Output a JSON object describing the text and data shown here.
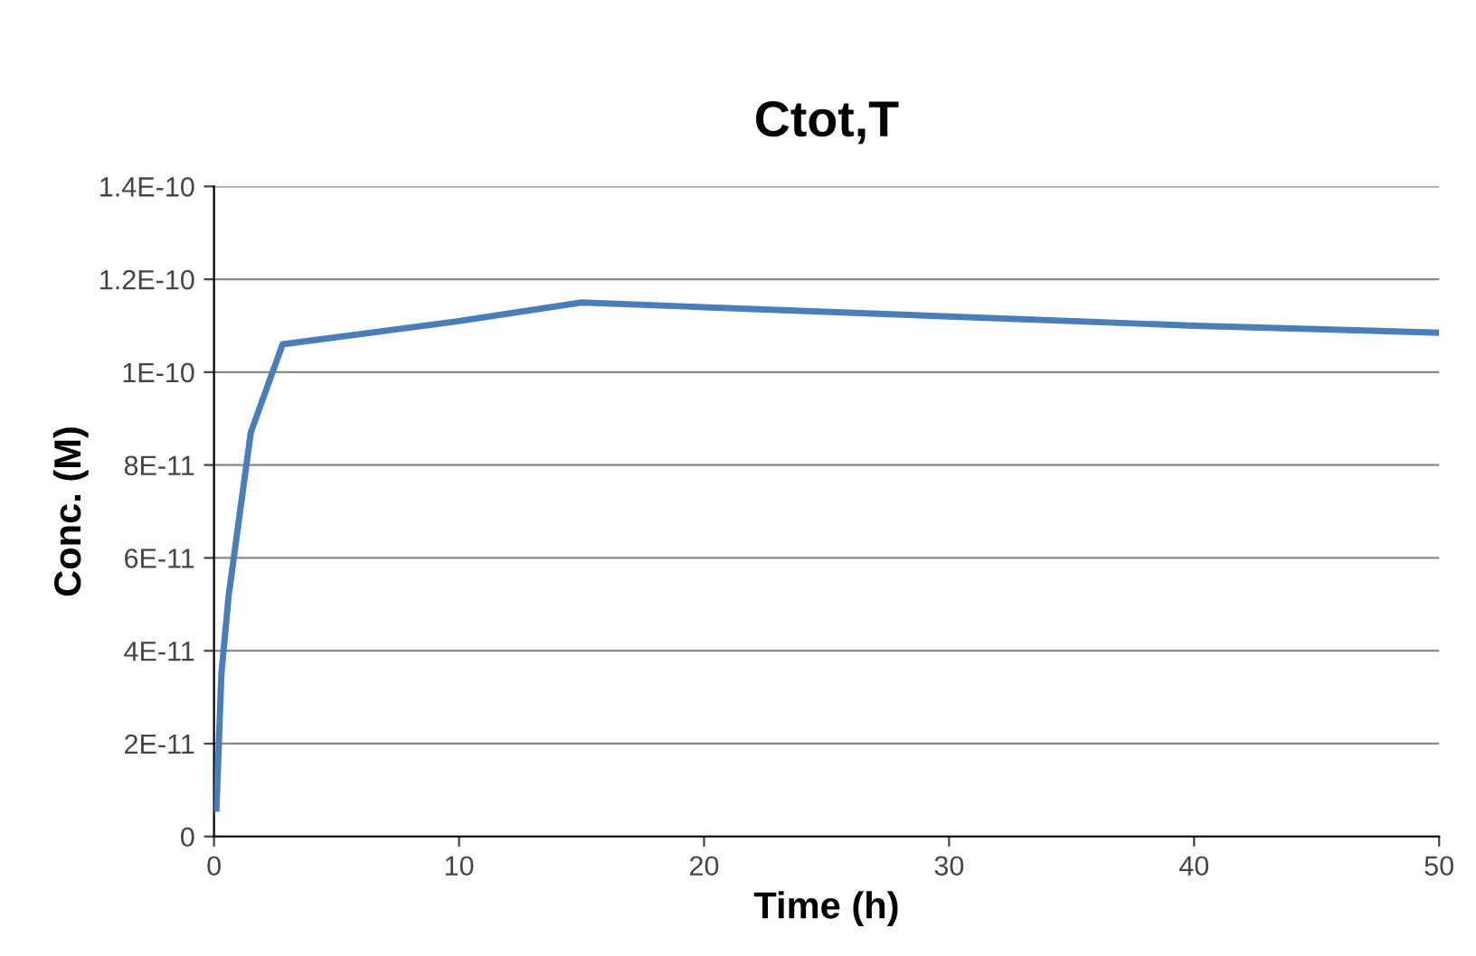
{
  "chart_data": {
    "type": "line",
    "title": "Ctot,T",
    "xlabel": "Time (h)",
    "ylabel": "Conc. (M)",
    "series": [
      {
        "color": "#4a7ebb",
        "x": [
          0.1,
          0.3,
          0.6,
          1.5,
          2.8,
          10,
          15,
          20,
          30,
          40,
          50
        ],
        "values": [
          6e-12,
          3.5e-11,
          5.2e-11,
          8.7e-11,
          1.06e-10,
          1.11e-10,
          1.15e-10,
          1.14e-10,
          1.12e-10,
          1.1e-10,
          1.085e-10
        ]
      }
    ],
    "xlim": [
      0,
      50
    ],
    "xticks": [
      0,
      10,
      20,
      30,
      40,
      50
    ],
    "ylim": [
      0,
      1.4e-10
    ],
    "yticks": [
      {
        "value": 0,
        "label": "0"
      },
      {
        "value": 2e-11,
        "label": "2E-11"
      },
      {
        "value": 4e-11,
        "label": "4E-11"
      },
      {
        "value": 6e-11,
        "label": "6E-11"
      },
      {
        "value": 8e-11,
        "label": "8E-11"
      },
      {
        "value": 1e-10,
        "label": "1E-10"
      },
      {
        "value": 1.2e-10,
        "label": "1.2E-10"
      },
      {
        "value": 1.4e-10,
        "label": "1.4E-10"
      }
    ],
    "grid": "y",
    "marker": "none",
    "line_style": "solid"
  }
}
